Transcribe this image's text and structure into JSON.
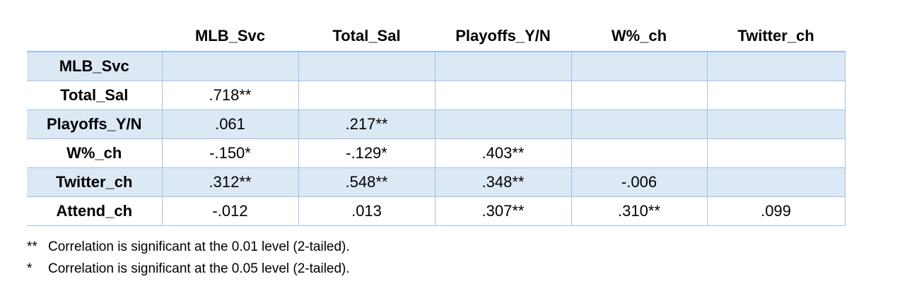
{
  "table": {
    "columns": [
      "MLB_Svc",
      "Total_Sal",
      "Playoffs_Y/N",
      "W%_ch",
      "Twitter_ch"
    ],
    "rows": [
      {
        "label": "MLB_Svc",
        "cells": []
      },
      {
        "label": "Total_Sal",
        "cells": [
          ".718**"
        ]
      },
      {
        "label": "Playoffs_Y/N",
        "cells": [
          ".061",
          ".217**"
        ]
      },
      {
        "label": "W%_ch",
        "cells": [
          "-.150*",
          "-.129*",
          ".403**"
        ]
      },
      {
        "label": "Twitter_ch",
        "cells": [
          ".312**",
          ".548**",
          ".348**",
          "-.006"
        ]
      },
      {
        "label": "Attend_ch",
        "cells": [
          "-.012",
          ".013",
          ".307**",
          ".310**",
          ".099"
        ]
      }
    ]
  },
  "notes": [
    {
      "marker": "**",
      "text": "Correlation is significant at the 0.01 level (2-tailed)."
    },
    {
      "marker": "*",
      "text": "Correlation is significant at the 0.05 level (2-tailed)."
    }
  ]
}
